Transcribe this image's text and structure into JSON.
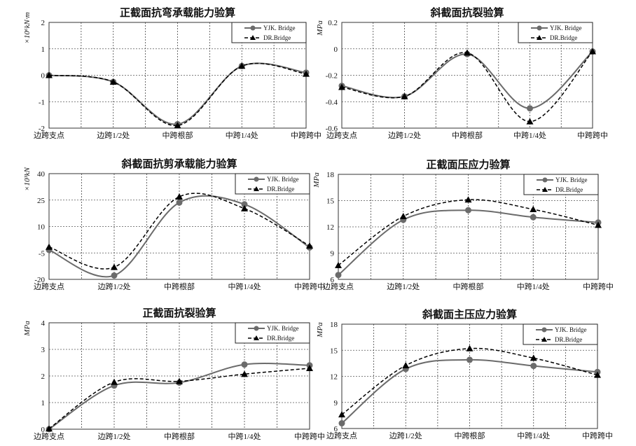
{
  "chart_data": [
    {
      "type": "line",
      "title": "正截面抗弯承载能力验算",
      "ylabel": "×10⁶kN·m",
      "categories": [
        "边跨支点",
        "边跨1/2处",
        "中跨根部",
        "中跨1/4处",
        "中跨跨中"
      ],
      "ylim": [
        -2,
        2
      ],
      "yticks": [
        -2,
        -1,
        0,
        1,
        2
      ],
      "grid": true,
      "legend": "top-right",
      "series": [
        {
          "name": "YJK. Bridge",
          "marker": "circle",
          "style": "solid",
          "color": "#6b6b6b",
          "values": [
            0,
            -0.25,
            -1.85,
            0.35,
            0.1
          ]
        },
        {
          "name": "DR.Bridge",
          "marker": "triangle",
          "style": "dashed",
          "color": "#000000",
          "values": [
            0,
            -0.25,
            -1.9,
            0.35,
            0.05
          ]
        }
      ]
    },
    {
      "type": "line",
      "title": "斜截面抗裂验算",
      "ylabel": "MPa",
      "categories": [
        "边跨支点",
        "边跨1/2处",
        "中跨根部",
        "中跨1/4处",
        "中跨跨中"
      ],
      "ylim": [
        -0.6,
        0.2
      ],
      "yticks": [
        -0.6,
        -0.4,
        -0.2,
        0,
        0.2
      ],
      "grid": true,
      "legend": "top-right",
      "series": [
        {
          "name": "YJK. Bridge",
          "marker": "circle",
          "style": "solid",
          "color": "#6b6b6b",
          "values": [
            -0.28,
            -0.36,
            -0.04,
            -0.45,
            -0.02
          ]
        },
        {
          "name": "DR.Bridge",
          "marker": "triangle",
          "style": "dashed",
          "color": "#000000",
          "values": [
            -0.29,
            -0.36,
            -0.03,
            -0.55,
            -0.02
          ]
        }
      ]
    },
    {
      "type": "line",
      "title": "斜截面抗剪承载能力验算",
      "ylabel": "×10³kN",
      "categories": [
        "边跨支点",
        "边跨1/2处",
        "中跨根部",
        "中跨1/4处",
        "中跨跨中"
      ],
      "ylim": [
        -20,
        40
      ],
      "yticks": [
        -20,
        -5,
        10,
        25,
        40
      ],
      "grid": true,
      "legend": "top-right",
      "series": [
        {
          "name": "YJK. Bridge",
          "marker": "circle",
          "style": "solid",
          "color": "#6b6b6b",
          "values": [
            -3.3,
            -17.8,
            23.6,
            22.6,
            -1.9
          ]
        },
        {
          "name": "DR.Bridge",
          "marker": "triangle",
          "style": "dashed",
          "color": "#000000",
          "values": [
            -1.6,
            -13.1,
            26.9,
            20.2,
            -1.0
          ]
        }
      ]
    },
    {
      "type": "line",
      "title": "正截面压应力验算",
      "ylabel": "MPa",
      "categories": [
        "边跨支点",
        "边跨1/2处",
        "中跨根部",
        "中跨1/4处",
        "中跨跨中"
      ],
      "ylim": [
        6,
        18
      ],
      "yticks": [
        6,
        9,
        12,
        15,
        18
      ],
      "grid": true,
      "legend": "top-right",
      "series": [
        {
          "name": "YJK. Bridge",
          "marker": "circle",
          "style": "solid",
          "color": "#6b6b6b",
          "values": [
            6.5,
            12.8,
            13.9,
            13.1,
            12.5
          ]
        },
        {
          "name": "DR.Bridge",
          "marker": "triangle",
          "style": "dashed",
          "color": "#000000",
          "values": [
            7.6,
            13.2,
            15.1,
            14.0,
            12.2
          ]
        }
      ]
    },
    {
      "type": "line",
      "title": "正截面抗裂验算",
      "ylabel": "MPa",
      "categories": [
        "边跨支点",
        "边跨1/2处",
        "中跨根部",
        "中跨1/4处",
        "中跨跨中"
      ],
      "ylim": [
        0,
        4
      ],
      "yticks": [
        0,
        1,
        2,
        3,
        4
      ],
      "grid": true,
      "legend": "top-right",
      "series": [
        {
          "name": "YJK. Bridge",
          "marker": "circle",
          "style": "solid",
          "color": "#6b6b6b",
          "values": [
            0,
            1.64,
            1.75,
            2.43,
            2.4
          ]
        },
        {
          "name": "DR.Bridge",
          "marker": "triangle",
          "style": "dashed",
          "color": "#000000",
          "values": [
            0.02,
            1.77,
            1.8,
            2.07,
            2.29
          ]
        }
      ]
    },
    {
      "type": "line",
      "title": "斜截面主压应力验算",
      "ylabel": "MPa",
      "categories": [
        "边跨支点",
        "边跨1/2处",
        "中跨根部",
        "中跨1/4处",
        "中跨跨中"
      ],
      "ylim": [
        6,
        18
      ],
      "yticks": [
        6,
        9,
        12,
        15,
        18
      ],
      "grid": true,
      "legend": "top-right",
      "series": [
        {
          "name": "YJK. Bridge",
          "marker": "circle",
          "style": "solid",
          "color": "#6b6b6b",
          "values": [
            6.6,
            12.85,
            13.9,
            13.2,
            12.5
          ]
        },
        {
          "name": "DR.Bridge",
          "marker": "triangle",
          "style": "dashed",
          "color": "#000000",
          "values": [
            7.6,
            13.25,
            15.2,
            14.1,
            12.15
          ]
        }
      ]
    }
  ]
}
